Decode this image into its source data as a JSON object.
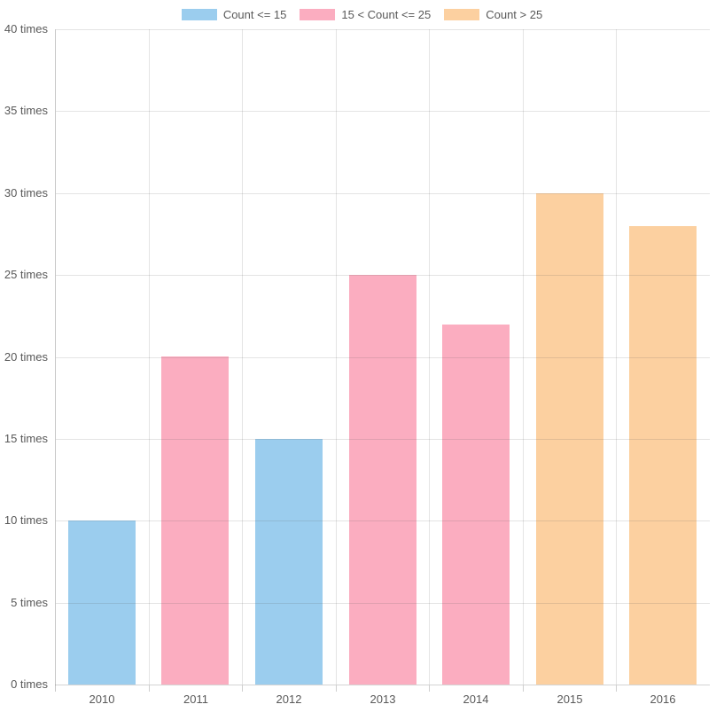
{
  "legend": {
    "items": [
      {
        "label": "Count <= 15",
        "color": "#9BCDEE"
      },
      {
        "label": "15 < Count <= 25",
        "color": "#FBADC0"
      },
      {
        "label": "Count > 25",
        "color": "#FCD0A0"
      }
    ]
  },
  "chart_data": {
    "type": "bar",
    "title": "",
    "categories": [
      "2010",
      "2011",
      "2012",
      "2013",
      "2014",
      "2015",
      "2016"
    ],
    "values": [
      10,
      20,
      15,
      25,
      22,
      30,
      28
    ],
    "bar_series": [
      "Count <= 15",
      "15 < Count <= 25",
      "Count <= 15",
      "15 < Count <= 25",
      "15 < Count <= 25",
      "Count > 25",
      "Count > 25"
    ],
    "bar_colors": [
      "#9BCDEE",
      "#FBADC0",
      "#9BCDEE",
      "#FBADC0",
      "#FBADC0",
      "#FCD0A0",
      "#FCD0A0"
    ],
    "xlabel": "",
    "ylabel": "",
    "ylim": [
      0,
      40
    ],
    "ytick_step": 5,
    "yticks": [
      "0 times",
      "5 times",
      "10 times",
      "15 times",
      "20 times",
      "25 times",
      "30 times",
      "35 times",
      "40 times"
    ],
    "legend_position": "top",
    "grid": true,
    "colors": {
      "grid_line": "#e4e4e4",
      "axis_line": "#c7c7c7",
      "tick_text": "#595959"
    }
  }
}
